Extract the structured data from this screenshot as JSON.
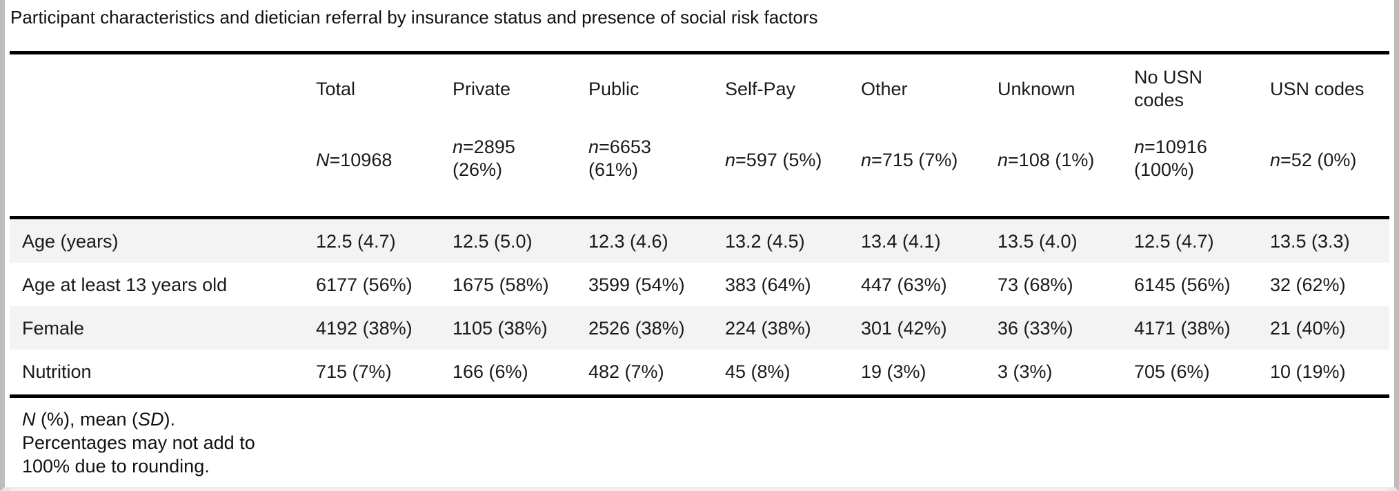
{
  "caption": "Participant characteristics and dietician referral by insurance status and presence of social risk factors",
  "columns": [
    {
      "label": "Total",
      "n_prefix": "N",
      "n_value": "=10968",
      "n_pct": ""
    },
    {
      "label": "Private",
      "n_prefix": "n",
      "n_value": "=2895",
      "n_pct": "(26%)"
    },
    {
      "label": "Public",
      "n_prefix": "n",
      "n_value": "=6653",
      "n_pct": "(61%)"
    },
    {
      "label": "Self-Pay",
      "n_prefix": "n",
      "n_value": "=597 (5%)",
      "n_pct": ""
    },
    {
      "label": "Other",
      "n_prefix": "n",
      "n_value": "=715 (7%)",
      "n_pct": ""
    },
    {
      "label": "Unknown",
      "n_prefix": "n",
      "n_value": "=108 (1%)",
      "n_pct": ""
    },
    {
      "label_line1": "No USN",
      "label_line2": "codes",
      "n_prefix": "n",
      "n_value": "=10916",
      "n_pct": "(100%)"
    },
    {
      "label": "USN codes",
      "n_prefix": "n",
      "n_value": "=52 (0%)",
      "n_pct": ""
    }
  ],
  "rows": [
    {
      "label": "Age (years)",
      "values": [
        "12.5 (4.7)",
        "12.5 (5.0)",
        "12.3 (4.6)",
        "13.2 (4.5)",
        "13.4 (4.1)",
        "13.5 (4.0)",
        "12.5 (4.7)",
        "13.5 (3.3)"
      ]
    },
    {
      "label": "Age at least 13 years old",
      "values": [
        "6177 (56%)",
        "1675 (58%)",
        "3599 (54%)",
        "383 (64%)",
        "447 (63%)",
        "73 (68%)",
        "6145 (56%)",
        "32 (62%)"
      ]
    },
    {
      "label": "Female",
      "values": [
        "4192 (38%)",
        "1105 (38%)",
        "2526 (38%)",
        "224 (38%)",
        "301 (42%)",
        "36 (33%)",
        "4171 (38%)",
        "21 (40%)"
      ]
    },
    {
      "label": "Nutrition",
      "values": [
        "715 (7%)",
        "166 (6%)",
        "482 (7%)",
        "45 (8%)",
        "19 (3%)",
        "3 (3%)",
        "705 (6%)",
        "10 (19%)"
      ]
    }
  ],
  "footnote": {
    "line1_a": "N",
    "line1_b": " (%), mean (",
    "line1_c": "SD",
    "line1_d": ").",
    "line2": "Percentages may not add to",
    "line3": "100% due to rounding."
  }
}
